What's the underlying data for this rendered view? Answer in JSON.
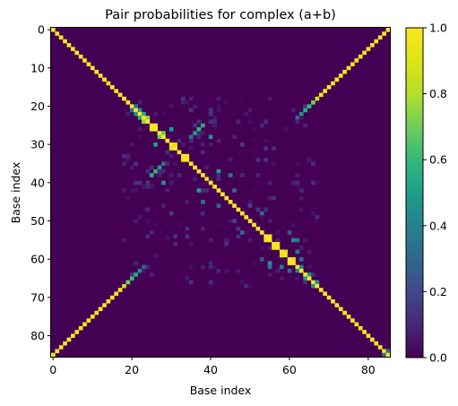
{
  "chart_data": {
    "type": "heatmap",
    "title": "Pair probabilities for complex (a+b)",
    "xlabel": "Base index",
    "ylabel": "Base index",
    "size": 86,
    "x_ticks": [
      0,
      20,
      40,
      60,
      80
    ],
    "y_ticks": [
      0,
      10,
      20,
      30,
      40,
      50,
      60,
      70,
      80
    ],
    "colorbar": {
      "colormap": "viridis",
      "range": [
        0.0,
        1.0
      ],
      "ticks": [
        "0.0",
        "0.2",
        "0.4",
        "0.6",
        "0.8",
        "1.0"
      ]
    },
    "diagonal": {
      "value": 1.0
    },
    "helices": [
      {
        "i0": 0,
        "j0": 85,
        "len": 18,
        "value": 0.98
      },
      {
        "i0": 18,
        "j0": 67,
        "len": 1,
        "value": 0.85
      },
      {
        "i0": 19,
        "j0": 66,
        "len": 1,
        "value": 0.7
      },
      {
        "i0": 20,
        "j0": 65,
        "len": 1,
        "value": 0.6
      },
      {
        "i0": 21,
        "j0": 64,
        "len": 1,
        "value": 0.55
      },
      {
        "i0": 22,
        "j0": 63,
        "len": 1,
        "value": 0.45
      },
      {
        "i0": 23,
        "j0": 62,
        "len": 1,
        "value": 0.3
      },
      {
        "i0": 20,
        "j0": 21,
        "len": 1,
        "value": 0.35
      },
      {
        "i0": 21,
        "j0": 22,
        "len": 1,
        "value": 0.45
      },
      {
        "i0": 22,
        "j0": 23,
        "len": 1,
        "value": 0.55
      },
      {
        "i0": 23,
        "j0": 24,
        "len": 1,
        "value": 0.75
      },
      {
        "i0": 25,
        "j0": 26,
        "len": 1,
        "value": 0.95
      },
      {
        "i0": 27,
        "j0": 28,
        "len": 1,
        "value": 0.7
      },
      {
        "i0": 30,
        "j0": 31,
        "len": 1,
        "value": 0.9
      },
      {
        "i0": 33,
        "j0": 34,
        "len": 1,
        "value": 0.95
      },
      {
        "i0": 26,
        "j0": 30,
        "len": 1,
        "value": 0.5
      },
      {
        "i0": 28,
        "j0": 40,
        "len": 1,
        "value": 0.45
      },
      {
        "i0": 25,
        "j0": 38,
        "len": 1,
        "value": 0.55
      },
      {
        "i0": 26,
        "j0": 37,
        "len": 1,
        "value": 0.6
      },
      {
        "i0": 27,
        "j0": 36,
        "len": 1,
        "value": 0.5
      },
      {
        "i0": 28,
        "j0": 35,
        "len": 1,
        "value": 0.35
      },
      {
        "i0": 37,
        "j0": 42,
        "len": 1,
        "value": 0.5
      },
      {
        "i0": 38,
        "j0": 45,
        "len": 1,
        "value": 0.35
      },
      {
        "i0": 42,
        "j0": 46,
        "len": 1,
        "value": 0.3
      },
      {
        "i0": 48,
        "j0": 53,
        "len": 1,
        "value": 0.3
      },
      {
        "i0": 53,
        "j0": 60,
        "len": 1,
        "value": 0.25
      },
      {
        "i0": 55,
        "j0": 62,
        "len": 1,
        "value": 0.35
      },
      {
        "i0": 62,
        "j0": 63,
        "len": 1,
        "value": 0.4
      },
      {
        "i0": 64,
        "j0": 65,
        "len": 1,
        "value": 0.5
      },
      {
        "i0": 66,
        "j0": 67,
        "len": 1,
        "value": 0.45
      },
      {
        "i0": 84,
        "j0": 85,
        "len": 1,
        "value": 0.3
      }
    ],
    "singles": [
      {
        "i": 54,
        "j": 55,
        "value": 0.95
      },
      {
        "i": 56,
        "j": 57,
        "value": 0.95
      },
      {
        "i": 58,
        "j": 59,
        "value": 0.9
      },
      {
        "i": 60,
        "j": 61,
        "value": 0.95
      },
      {
        "i": 55,
        "j": 61,
        "value": 0.45
      },
      {
        "i": 58,
        "j": 62,
        "value": 0.35
      },
      {
        "i": 60,
        "j": 63,
        "value": 0.3
      },
      {
        "i": 30,
        "j": 48,
        "value": 0.15
      },
      {
        "i": 34,
        "j": 52,
        "value": 0.12
      },
      {
        "i": 18,
        "j": 33,
        "value": 0.12
      },
      {
        "i": 46,
        "j": 50,
        "value": 0.18
      },
      {
        "i": 44,
        "j": 56,
        "value": 0.12
      },
      {
        "i": 47,
        "j": 52,
        "value": 0.14
      }
    ],
    "noise": {
      "range_lo": 18,
      "range_hi": 68,
      "max_value": 0.14,
      "count": 110,
      "seed": 7
    }
  }
}
